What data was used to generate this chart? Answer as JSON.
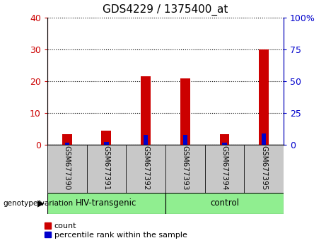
{
  "title": "GDS4229 / 1375400_at",
  "samples": [
    "GSM677390",
    "GSM677391",
    "GSM677392",
    "GSM677393",
    "GSM677394",
    "GSM677395"
  ],
  "count_values": [
    3.5,
    4.5,
    21.5,
    21.0,
    3.5,
    30.0
  ],
  "percentile_values": [
    2.0,
    2.5,
    8.0,
    8.0,
    2.0,
    9.0
  ],
  "groups": [
    {
      "label": "HIV-transgenic",
      "indices": [
        0,
        1,
        2
      ]
    },
    {
      "label": "control",
      "indices": [
        3,
        4,
        5
      ]
    }
  ],
  "group_color": "#90EE90",
  "ylim_left": [
    0,
    40
  ],
  "ylim_right": [
    0,
    100
  ],
  "yticks_left": [
    0,
    10,
    20,
    30,
    40
  ],
  "yticks_right": [
    0,
    25,
    50,
    75,
    100
  ],
  "left_tick_labels": [
    "0",
    "10",
    "20",
    "30",
    "40"
  ],
  "right_tick_labels": [
    "0",
    "25",
    "50",
    "75",
    "100%"
  ],
  "bar_color_red": "#CC0000",
  "bar_color_blue": "#0000CC",
  "bar_width": 0.25,
  "left_tick_color": "#CC0000",
  "right_tick_color": "#0000CC",
  "grid_color": "black",
  "bg_plot": "white",
  "label_bg": "#C8C8C8",
  "group_label_x": "genotype/variation",
  "legend_count": "count",
  "legend_percentile": "percentile rank within the sample",
  "figsize": [
    4.61,
    3.54
  ],
  "dpi": 100
}
